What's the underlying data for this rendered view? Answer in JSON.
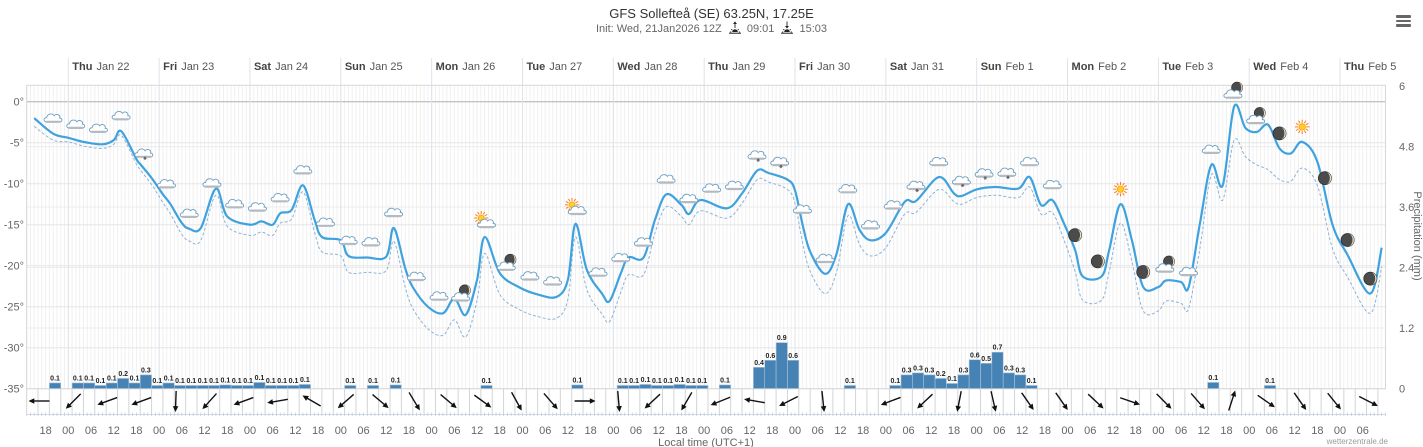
{
  "header": {
    "title": "GFS Sollefteå (SE) 63.25N, 17.25E",
    "init": "Init: Wed, 21Jan2026 12Z",
    "sunrise_icon": "sunrise-icon",
    "sunrise": "09:01",
    "sunset_icon": "sunset-icon",
    "sunset": "15:03",
    "menu_icon": "hamburger-menu-icon"
  },
  "footer": {
    "xlabel": "Local time (UTC+1)",
    "credit": "wetterzentrale.de"
  },
  "chart_data": {
    "type": "line",
    "title": "GFS Sollefteå (SE) 63.25N, 17.25E",
    "x_unit": "hours since Thu Jan 22 00:00 local time",
    "xlim": [
      -11,
      348
    ],
    "xlabel": "Local time (UTC+1)",
    "grid": true,
    "legend": "none",
    "day_labels": [
      {
        "hour": 0,
        "day": "Thu",
        "date": "Jan 22"
      },
      {
        "hour": 24,
        "day": "Fri",
        "date": "Jan 23"
      },
      {
        "hour": 48,
        "day": "Sat",
        "date": "Jan 24"
      },
      {
        "hour": 72,
        "day": "Sun",
        "date": "Jan 25"
      },
      {
        "hour": 96,
        "day": "Mon",
        "date": "Jan 26"
      },
      {
        "hour": 120,
        "day": "Tue",
        "date": "Jan 27"
      },
      {
        "hour": 144,
        "day": "Wed",
        "date": "Jan 28"
      },
      {
        "hour": 168,
        "day": "Thu",
        "date": "Jan 29"
      },
      {
        "hour": 192,
        "day": "Fri",
        "date": "Jan 30"
      },
      {
        "hour": 216,
        "day": "Sat",
        "date": "Jan 31"
      },
      {
        "hour": 240,
        "day": "Sun",
        "date": "Feb 1"
      },
      {
        "hour": 264,
        "day": "Mon",
        "date": "Feb 2"
      },
      {
        "hour": 288,
        "day": "Tue",
        "date": "Feb 3"
      },
      {
        "hour": 312,
        "day": "Wed",
        "date": "Feb 4"
      },
      {
        "hour": 336,
        "day": "Thu",
        "date": "Feb 5"
      }
    ],
    "x_tick_labels": {
      "start_hour": -6,
      "step_hours": 6,
      "labels": [
        "18",
        "00",
        "06",
        "12",
        "18",
        "00",
        "06",
        "12",
        "18",
        "00",
        "06",
        "12",
        "18",
        "00",
        "06",
        "12",
        "18",
        "00",
        "06",
        "12",
        "18",
        "00",
        "06",
        "12",
        "18",
        "00",
        "06",
        "12",
        "18",
        "00",
        "06",
        "12",
        "18",
        "00",
        "06",
        "12",
        "18",
        "00",
        "06",
        "12",
        "18",
        "00",
        "06",
        "12",
        "18",
        "00",
        "06",
        "12",
        "18",
        "00",
        "06",
        "12",
        "18",
        "00",
        "06",
        "12",
        "18",
        "00",
        "06"
      ]
    },
    "temperature_axis": {
      "ylim": [
        -35,
        2
      ],
      "ticks": [
        0,
        -5,
        -10,
        -15,
        -20,
        -25,
        -30,
        -35
      ],
      "tick_labels": [
        "0°",
        "-5°",
        "-10°",
        "-15°",
        "-20°",
        "-25°",
        "-30°",
        "-35°"
      ]
    },
    "precipitation_axis": {
      "ylabel": "Precipitation (mm)",
      "ylim": [
        0,
        6
      ],
      "ticks": [
        0,
        1.2,
        2.4,
        3.6,
        4.8,
        6
      ],
      "tick_labels": [
        "0",
        "1.2",
        "2.4",
        "3.6",
        "4.8",
        "6"
      ]
    },
    "x": [
      -9,
      -4,
      0,
      4,
      9,
      12,
      14,
      18,
      19,
      22,
      25,
      27,
      30,
      32,
      35,
      39,
      42,
      48,
      51,
      54,
      56,
      59,
      62,
      65,
      67,
      72,
      74,
      79,
      84,
      86,
      89,
      91,
      95,
      99,
      102,
      105,
      108,
      110,
      114,
      119,
      124,
      129,
      132,
      134,
      137,
      141,
      143,
      146,
      148,
      152,
      155,
      158,
      162,
      164,
      167,
      174,
      178,
      182,
      185,
      190,
      192,
      194,
      196,
      200,
      203,
      206,
      209,
      212,
      216,
      221,
      224,
      230,
      234,
      236,
      240,
      245,
      251,
      254,
      257,
      260,
      263,
      266,
      268,
      273,
      275,
      278,
      281,
      284,
      288,
      290,
      294,
      296,
      299,
      302,
      305,
      308,
      311,
      314,
      317,
      320,
      323,
      326,
      330,
      334,
      338,
      344,
      347
    ],
    "series": [
      {
        "name": "temperature (solid)",
        "style": "solid",
        "color": "#3fa2de",
        "values": [
          -2.0,
          -3.9,
          -4.4,
          -4.9,
          -5.2,
          -4.7,
          -3.6,
          -7.0,
          -7.6,
          -9.3,
          -11.3,
          -12.5,
          -14.8,
          -15.5,
          -15.4,
          -10.6,
          -14.0,
          -15.0,
          -14.6,
          -15.0,
          -13.6,
          -13.2,
          -10.2,
          -14.3,
          -16.5,
          -16.9,
          -18.8,
          -19.0,
          -18.9,
          -15.4,
          -20.3,
          -22.6,
          -25.0,
          -25.8,
          -24.0,
          -26.0,
          -21.7,
          -16.5,
          -20.9,
          -22.6,
          -23.5,
          -23.8,
          -21.7,
          -14.9,
          -20.5,
          -23.4,
          -24.3,
          -20.9,
          -19.0,
          -19.0,
          -14.4,
          -11.3,
          -12.6,
          -13.7,
          -12.0,
          -13.0,
          -11.2,
          -8.4,
          -8.7,
          -9.5,
          -10.8,
          -15.0,
          -18.3,
          -21.0,
          -18.5,
          -12.5,
          -15.6,
          -16.9,
          -16.0,
          -12.2,
          -12.1,
          -9.2,
          -11.2,
          -11.5,
          -10.7,
          -10.4,
          -10.6,
          -9.2,
          -12.6,
          -12.0,
          -14.8,
          -18.1,
          -21.3,
          -21.3,
          -18.1,
          -12.5,
          -16.9,
          -22.6,
          -22.6,
          -21.8,
          -22.0,
          -22.6,
          -14.8,
          -7.7,
          -10.2,
          -0.6,
          -3.2,
          -3.7,
          -2.8,
          -5.7,
          -6.3,
          -4.9,
          -7.3,
          -15.0,
          -18.7,
          -23.4,
          -17.8
        ]
      },
      {
        "name": "temperature (dashed)",
        "style": "dashed",
        "color": "#8db3d6",
        "values": [
          -3.0,
          -4.7,
          -4.9,
          -5.4,
          -5.7,
          -5.2,
          -4.1,
          -7.6,
          -8.3,
          -10.1,
          -12.3,
          -13.7,
          -16.2,
          -17.0,
          -16.9,
          -11.4,
          -15.2,
          -16.3,
          -15.9,
          -16.3,
          -14.8,
          -14.3,
          -11.0,
          -15.8,
          -18.3,
          -18.8,
          -20.8,
          -20.8,
          -20.6,
          -17.0,
          -22.6,
          -25.2,
          -27.7,
          -28.5,
          -26.6,
          -28.7,
          -24.2,
          -18.5,
          -23.5,
          -25.3,
          -26.2,
          -26.4,
          -24.1,
          -16.5,
          -22.9,
          -25.9,
          -26.8,
          -23.2,
          -21.1,
          -21.1,
          -16.0,
          -12.8,
          -14.0,
          -15.0,
          -13.3,
          -14.2,
          -12.4,
          -9.5,
          -9.8,
          -10.7,
          -12.4,
          -17.2,
          -20.7,
          -23.4,
          -20.7,
          -13.9,
          -17.4,
          -18.8,
          -17.8,
          -13.7,
          -13.5,
          -10.7,
          -12.2,
          -12.5,
          -11.7,
          -11.4,
          -11.7,
          -10.4,
          -13.7,
          -13.5,
          -16.8,
          -20.7,
          -24.2,
          -24.2,
          -20.7,
          -14.8,
          -19.5,
          -25.5,
          -25.5,
          -24.3,
          -24.6,
          -25.2,
          -17.8,
          -8.9,
          -12.0,
          -4.7,
          -6.7,
          -7.7,
          -8.3,
          -9.5,
          -9.7,
          -8.1,
          -10.2,
          -17.9,
          -21.4,
          -25.8,
          -20.1
        ]
      }
    ],
    "precipitation": {
      "type": "bar",
      "unit": "mm per 3h",
      "color": "#4682b4",
      "start_hour": -5,
      "step_hours": 3,
      "values": [
        0.11,
        0,
        0.11,
        0.11,
        0.06,
        0.11,
        0.2,
        0.11,
        0.27,
        0.06,
        0.11,
        0.06,
        0.06,
        0.06,
        0.06,
        0.07,
        0.06,
        0.06,
        0.12,
        0.06,
        0.06,
        0.06,
        0.08,
        0,
        0,
        0,
        0.06,
        0,
        0.06,
        0,
        0.07,
        0,
        0,
        0,
        0,
        0,
        0,
        0,
        0.06,
        0,
        0,
        0,
        0,
        0,
        0,
        0,
        0.07,
        0,
        0,
        0,
        0.06,
        0.06,
        0.08,
        0.06,
        0.06,
        0.08,
        0.06,
        0.06,
        0,
        0.07,
        0,
        0,
        0.42,
        0.56,
        0.91,
        0.56,
        0,
        0,
        0,
        0,
        0.06,
        0,
        0,
        0,
        0.06,
        0.27,
        0.31,
        0.27,
        0.2,
        0.1,
        0.27,
        0.57,
        0.5,
        0.72,
        0.31,
        0.27,
        0.06,
        0,
        0,
        0,
        0,
        0,
        0,
        0,
        0,
        0,
        0,
        0,
        0,
        0,
        0,
        0,
        0.12,
        0,
        0,
        0,
        0,
        0.06
      ],
      "labels": [
        "0.1",
        "",
        "0.1",
        "0.1",
        "0.1",
        "0.1",
        "0.2",
        "0.1",
        "0.3",
        "0.1",
        "0.1",
        "0.1",
        "0.1",
        "0.1",
        "0.1",
        "0.1",
        "0.1",
        "0.1",
        "0.1",
        "0.1",
        "0.1",
        "0.1",
        "0.1",
        "",
        "",
        "",
        "0.1",
        "",
        "0.1",
        "",
        "0.1",
        "",
        "",
        "",
        "",
        "",
        "",
        "",
        "0.1",
        "",
        "",
        "",
        "",
        "",
        "",
        "",
        "0.1",
        "",
        "",
        "",
        "0.1",
        "0.1",
        "0.1",
        "0.1",
        "0.1",
        "0.1",
        "0.1",
        "0.1",
        "",
        "0.1",
        "",
        "",
        "0.4",
        "0.6",
        "0.9",
        "0.6",
        "",
        "",
        "",
        "",
        "0.1",
        "",
        "",
        "",
        "0.1",
        "0.3",
        "0.3",
        "0.3",
        "0.2",
        "0.1",
        "0.3",
        "0.6",
        "0.5",
        "0.7",
        "0.3",
        "0.3",
        "0.1",
        "",
        "",
        "",
        "",
        "",
        "",
        "",
        "",
        "",
        "",
        "",
        "",
        "",
        "",
        "",
        "0.1",
        "",
        "",
        "",
        "",
        "0.1"
      ]
    },
    "wind": {
      "start_hour": -8,
      "step_hours": 9,
      "arrow_points_to_deg": [
        270,
        225,
        250,
        250,
        182,
        222,
        250,
        260,
        300,
        229,
        130,
        149,
        130,
        126,
        151,
        139,
        90,
        175,
        227,
        210,
        248,
        280,
        243,
        174,
        null,
        249,
        227,
        191,
        167,
        145,
        145,
        133,
        109,
        135,
        139,
        18,
        125,
        145,
        141,
        117
      ]
    },
    "weather_icons": {
      "start_hour": -4,
      "step_hours": 6,
      "types": [
        "cloud",
        "cloud",
        "cloud",
        "cloud",
        "cloud-snow",
        "cloud",
        "cloud",
        "cloud",
        "cloud",
        "cloud",
        "cloud",
        "cloud",
        "cloud",
        "cloud",
        "cloud",
        "cloud",
        "cloud",
        "cloud",
        "moon-cloud",
        "sun-cloud",
        "moon-cloud",
        "cloud",
        "cloud",
        "sun-cloud",
        "cloud",
        "cloud",
        "cloud",
        "cloud",
        "cloud",
        "cloud",
        "cloud",
        "cloud-snow",
        "cloud-snow",
        "cloud",
        "cloud",
        "cloud",
        "cloud",
        "cloud",
        "cloud-snow",
        "cloud",
        "cloud-snow",
        "cloud-snow",
        "cloud-snow",
        "cloud",
        "cloud",
        "moon",
        "moon",
        "sun",
        "moon",
        "moon-cloud",
        "cloud",
        "cloud",
        "moon-cloud",
        "moon-cloud",
        "moon",
        "sun",
        "moon",
        "moon",
        "moon"
      ]
    }
  }
}
